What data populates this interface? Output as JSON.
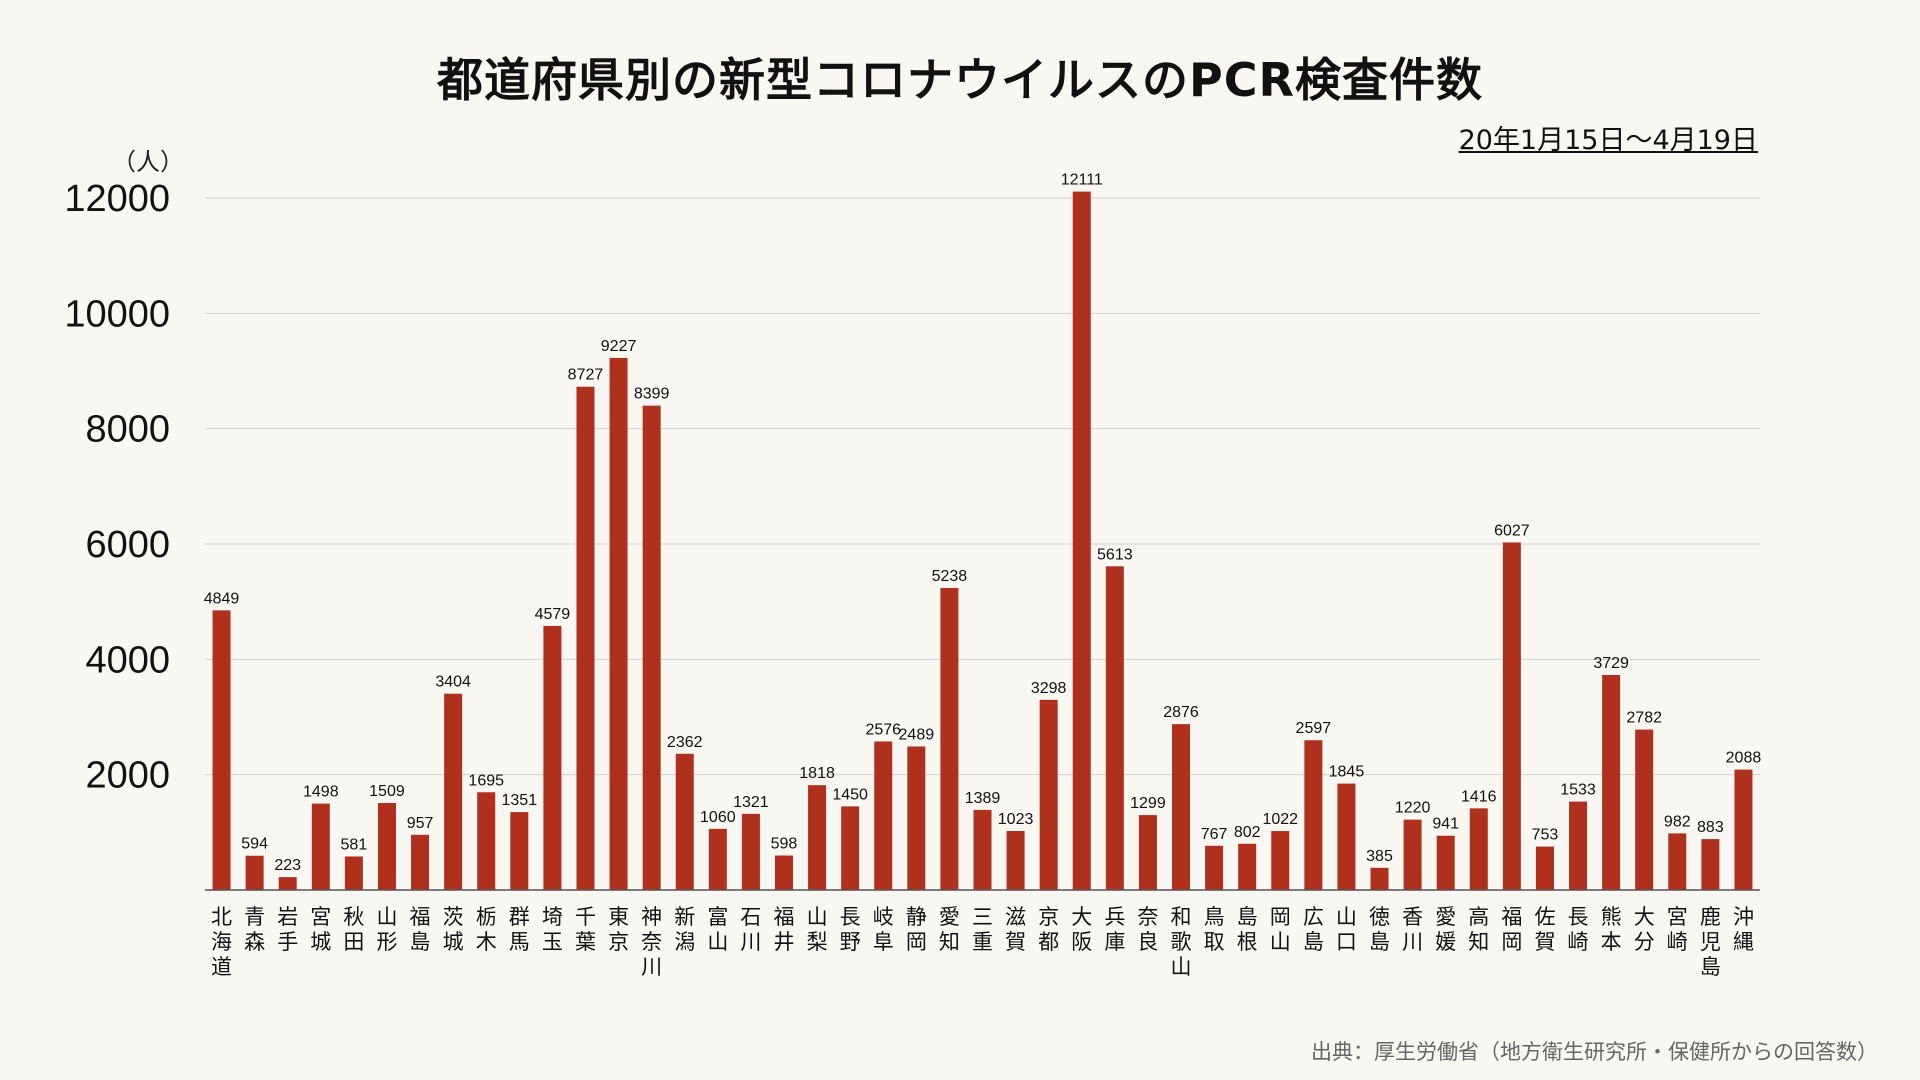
{
  "chart_data": {
    "type": "bar",
    "title": "都道府県別の新型コロナウイルスのPCR検査件数",
    "subtitle": "20年1月15日〜4月19日",
    "ylabel": "（人）",
    "source": "出典：厚生労働省（地方衛生研究所・保健所からの回答数）",
    "ylim": [
      0,
      12000
    ],
    "yticks": [
      2000,
      4000,
      6000,
      8000,
      10000,
      12000
    ],
    "grid": true,
    "bar_color": "#b0301e",
    "categories": [
      "北海道",
      "青森",
      "岩手",
      "宮城",
      "秋田",
      "山形",
      "福島",
      "茨城",
      "栃木",
      "群馬",
      "埼玉",
      "千葉",
      "東京",
      "神奈川",
      "新潟",
      "富山",
      "石川",
      "福井",
      "山梨",
      "長野",
      "岐阜",
      "静岡",
      "愛知",
      "三重",
      "滋賀",
      "京都",
      "大阪",
      "兵庫",
      "奈良",
      "和歌山",
      "鳥取",
      "島根",
      "岡山",
      "広島",
      "山口",
      "徳島",
      "香川",
      "愛媛",
      "高知",
      "福岡",
      "佐賀",
      "長崎",
      "熊本",
      "大分",
      "宮崎",
      "鹿児島",
      "沖縄"
    ],
    "values": [
      4849,
      594,
      223,
      1498,
      581,
      1509,
      957,
      3404,
      1695,
      1351,
      4579,
      8727,
      9227,
      8399,
      2362,
      1060,
      1321,
      598,
      1818,
      1450,
      2576,
      2489,
      5238,
      1389,
      1023,
      3298,
      12111,
      5613,
      1299,
      2876,
      767,
      802,
      1022,
      2597,
      1845,
      385,
      1220,
      941,
      1416,
      6027,
      753,
      1533,
      3729,
      2782,
      982,
      883,
      2088
    ]
  }
}
